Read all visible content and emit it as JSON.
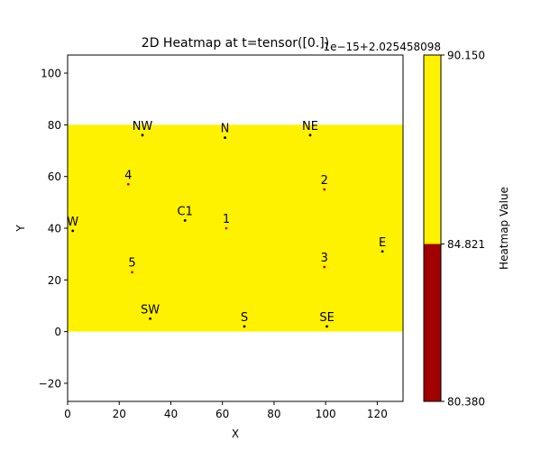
{
  "chart_data": {
    "type": "heatmap",
    "title": "2D Heatmap at t=tensor([0.])",
    "xlabel": "X",
    "ylabel": "Y",
    "xlim": [
      0,
      130
    ],
    "ylim": [
      -27,
      107
    ],
    "xticks": [
      0,
      20,
      40,
      60,
      80,
      100,
      120
    ],
    "yticks": [
      -20,
      0,
      20,
      40,
      60,
      80,
      100
    ],
    "grid": false,
    "heatmap_region": {
      "x": [
        0,
        130
      ],
      "y": [
        0,
        80
      ],
      "color": "#fff200"
    },
    "points": [
      {
        "label": "NW",
        "x": 29,
        "y": 76,
        "color": "#000000"
      },
      {
        "label": "N",
        "x": 61,
        "y": 75,
        "color": "#000000"
      },
      {
        "label": "NE",
        "x": 94,
        "y": 76,
        "color": "#000000"
      },
      {
        "label": "4",
        "x": 23.5,
        "y": 57,
        "color": "#cc0000"
      },
      {
        "label": "2",
        "x": 99.5,
        "y": 55,
        "color": "#cc0000"
      },
      {
        "label": "C1",
        "x": 45.5,
        "y": 43,
        "color": "#000000"
      },
      {
        "label": "1",
        "x": 61.5,
        "y": 40,
        "color": "#cc0000"
      },
      {
        "label": "W",
        "x": 2,
        "y": 39,
        "color": "#000000"
      },
      {
        "label": "E",
        "x": 122,
        "y": 31,
        "color": "#000000"
      },
      {
        "label": "5",
        "x": 25,
        "y": 23,
        "color": "#cc0000"
      },
      {
        "label": "3",
        "x": 99.5,
        "y": 25,
        "color": "#cc0000"
      },
      {
        "label": "SW",
        "x": 32,
        "y": 5,
        "color": "#000000"
      },
      {
        "label": "S",
        "x": 68.5,
        "y": 2,
        "color": "#000000"
      },
      {
        "label": "SE",
        "x": 100.5,
        "y": 2,
        "color": "#000000"
      }
    ],
    "colorbar": {
      "label": "Heatmap Value",
      "offset_text": "1e−15+2.025458098",
      "ticks": [
        "80.380",
        "84.821",
        "90.150"
      ],
      "tick_values": [
        80.38,
        84.821,
        90.15
      ],
      "bands": [
        {
          "from": 80.38,
          "to": 84.821,
          "color": "#a00000"
        },
        {
          "from": 84.821,
          "to": 90.15,
          "color": "#fff200"
        }
      ]
    }
  }
}
